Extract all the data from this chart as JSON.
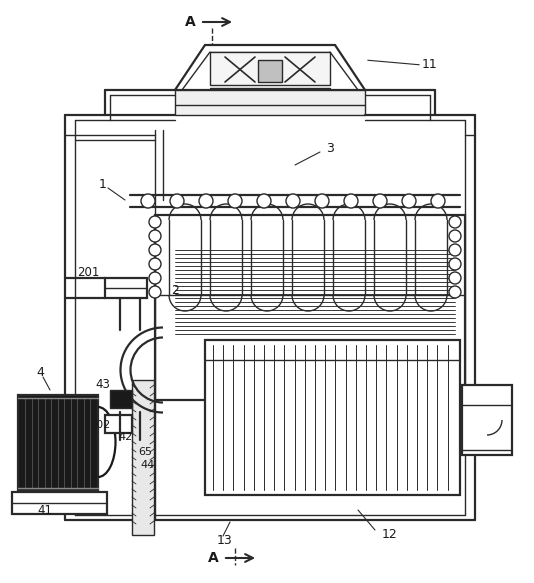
{
  "bg_color": "#ffffff",
  "line_color": "#2a2a2a",
  "figsize": [
    5.34,
    5.83
  ],
  "dpi": 100
}
